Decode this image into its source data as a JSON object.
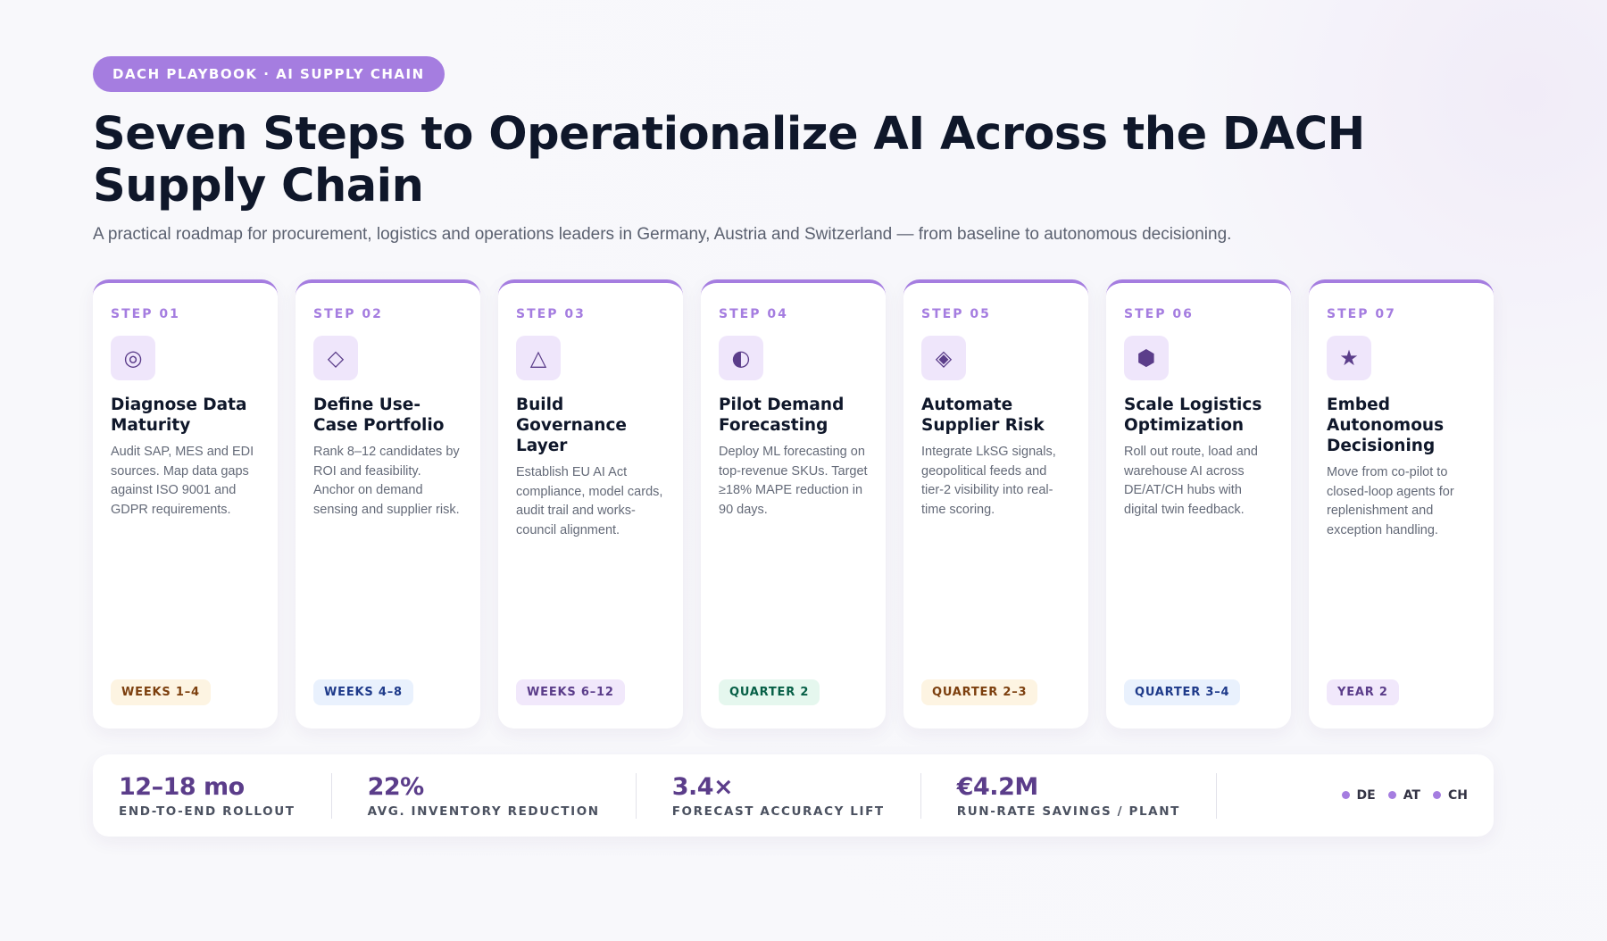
{
  "header": {
    "badge": "DACH PLAYBOOK · AI SUPPLY CHAIN",
    "title": "Seven Steps to Operationalize AI Across the DACH Supply Chain",
    "subtitle": "A practical roadmap for procurement, logistics and operations leaders in Germany, Austria and Switzerland — from baseline to autonomous decisioning."
  },
  "steps": [
    {
      "step": "STEP 01",
      "icon": "◎",
      "title": "Diagnose Data Maturity",
      "description": "Audit SAP, MES and EDI sources. Map data gaps against ISO 9001 and GDPR requirements.",
      "timing": "WEEKS 1–4"
    },
    {
      "step": "STEP 02",
      "icon": "◇",
      "title": "Define Use-Case Portfolio",
      "description": "Rank 8–12 candidates by ROI and feasibility. Anchor on demand sensing and supplier risk.",
      "timing": "WEEKS 4–8"
    },
    {
      "step": "STEP 03",
      "icon": "△",
      "title": "Build Governance Layer",
      "description": "Establish EU AI Act compliance, model cards, audit trail and works-council alignment.",
      "timing": "WEEKS 6–12"
    },
    {
      "step": "STEP 04",
      "icon": "◐",
      "title": "Pilot Demand Forecasting",
      "description": "Deploy ML forecasting on top-revenue SKUs. Target ≥18% MAPE reduction in 90 days.",
      "timing": "QUARTER 2"
    },
    {
      "step": "STEP 05",
      "icon": "◈",
      "title": "Automate Supplier Risk",
      "description": "Integrate LkSG signals, geopolitical feeds and tier-2 visibility into real-time scoring.",
      "timing": "QUARTER 2–3"
    },
    {
      "step": "STEP 06",
      "icon": "⬢",
      "title": "Scale Logistics Optimization",
      "description": "Roll out route, load and warehouse AI across DE/AT/CH hubs with digital twin feedback.",
      "timing": "QUARTER 3–4"
    },
    {
      "step": "STEP 07",
      "icon": "★",
      "title": "Embed Autonomous Decisioning",
      "description": "Move from co-pilot to closed-loop agents for replenishment and exception handling.",
      "timing": "YEAR 2"
    }
  ],
  "stats": [
    {
      "value": "12–18 mo",
      "label": "END-TO-END ROLLOUT"
    },
    {
      "value": "22%",
      "label": "AVG. INVENTORY REDUCTION"
    },
    {
      "value": "3.4×",
      "label": "FORECAST ACCURACY LIFT"
    },
    {
      "value": "€4.2M",
      "label": "RUN-RATE SAVINGS / PLANT"
    }
  ],
  "regions": [
    "DE",
    "AT",
    "CH"
  ]
}
